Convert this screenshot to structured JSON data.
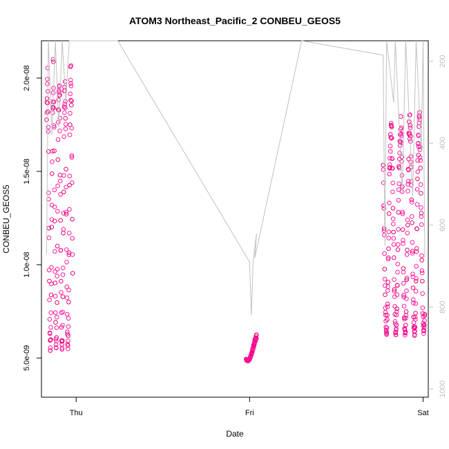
{
  "chart_data": {
    "type": "scatter",
    "title": "ATOM3 Northeast_Pacific_2 CONBEU_GEOS5",
    "xlabel": "Date",
    "ylabel": "CONBEU_GEOS5",
    "x_ticks": [
      "Thu",
      "Fri",
      "Sat"
    ],
    "y_ticks": [
      "5.0e-09",
      "1.0e-08",
      "1.5e-08",
      "2.0e-08"
    ],
    "y_tick_values": [
      5e-09,
      1e-08,
      1.5e-08,
      2e-08
    ],
    "y_range": [
      2.9e-09,
      2.2e-08
    ],
    "y2_ticks": [
      "200",
      "400",
      "600",
      "800",
      "1000"
    ],
    "y2_tick_values": [
      200,
      400,
      600,
      800,
      1000
    ],
    "y2_range": [
      1020,
      150
    ],
    "y2_label": "",
    "x_range_days": [
      -0.2,
      2.03
    ],
    "marker_color": "#ff1aa0",
    "marker_color_alt": "#e60073",
    "secondary_line_color": "#c0c0c0",
    "grid": false,
    "segments": [
      {
        "name": "",
        "x_start": -0.17,
        "x_end": -0.02,
        "y_min": 3e-09,
        "y_max": 2.13e-08
      },
      {
        "name": "",
        "x_start": 0.98,
        "x_end": 1.04,
        "y_min": 4.6e-09,
        "y_max": 6.4e-09
      },
      {
        "name": "",
        "x_start": 1.77,
        "x_end": 2.01,
        "y_min": 4.4e-09,
        "y_max": 1.85e-08
      }
    ],
    "secondary_line": [
      [
        -0.17,
        670
      ],
      [
        -0.16,
        150
      ],
      [
        -0.14,
        380
      ],
      [
        -0.12,
        150
      ],
      [
        -0.1,
        360
      ],
      [
        -0.08,
        150
      ],
      [
        -0.06,
        300
      ],
      [
        -0.04,
        150
      ],
      [
        -0.02,
        150
      ],
      [
        0.24,
        150
      ],
      [
        1.0,
        690
      ],
      [
        1.01,
        820
      ],
      [
        1.02,
        690
      ],
      [
        1.04,
        620
      ],
      [
        1.03,
        680
      ],
      [
        1.3,
        150
      ],
      [
        1.77,
        185
      ],
      [
        1.78,
        650
      ],
      [
        1.79,
        150
      ],
      [
        1.83,
        300
      ],
      [
        1.84,
        150
      ],
      [
        1.88,
        520
      ],
      [
        1.9,
        150
      ],
      [
        1.94,
        530
      ],
      [
        1.96,
        150
      ],
      [
        1.99,
        420
      ],
      [
        2.0,
        150
      ],
      [
        2.01,
        680
      ]
    ]
  }
}
